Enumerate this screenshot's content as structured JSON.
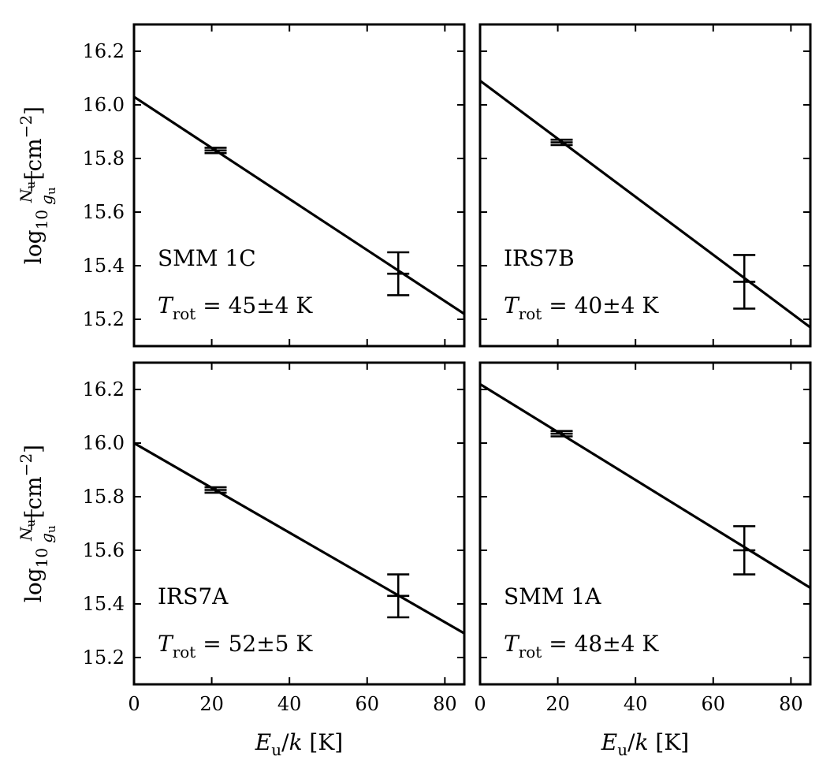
{
  "chart_data": {
    "type": "scatter",
    "layout": "2x2 grid, shared axes",
    "xlabel": {
      "symbol": "E",
      "sub": "u",
      "rest": "/k [K]"
    },
    "ylabel": {
      "prefix": "log",
      "prefix_sub": "10",
      "num": "N",
      "num_sub": "u",
      "den": "g",
      "den_sub": "u",
      "unit": "[cm",
      "unit_sup": "−2",
      "unit_close": "]"
    },
    "xlim": [
      0,
      85
    ],
    "ylim": [
      15.1,
      16.3
    ],
    "xticks": [
      0,
      20,
      40,
      60,
      80
    ],
    "xtick_labels": [
      "0",
      "20",
      "40",
      "60",
      "80"
    ],
    "yticks": [
      15.2,
      15.4,
      15.6,
      15.8,
      16.0,
      16.2
    ],
    "ytick_labels": [
      "15.2",
      "15.4",
      "15.6",
      "15.8",
      "16.0",
      "16.2"
    ],
    "grid": false,
    "panels": [
      {
        "name": "SMM 1C",
        "trot_symbol": "T",
        "trot_sub": "rot",
        "trot_text": " = 45±4 K",
        "fit": {
          "x": [
            0,
            85
          ],
          "y": [
            16.03,
            15.22
          ]
        },
        "points": [
          {
            "x": 21,
            "y": 15.83,
            "yerr": 0.01
          },
          {
            "x": 68,
            "y": 15.37,
            "yerr": 0.08
          }
        ]
      },
      {
        "name": "IRS7B",
        "trot_symbol": "T",
        "trot_sub": "rot",
        "trot_text": " = 40±4 K",
        "fit": {
          "x": [
            0,
            85
          ],
          "y": [
            16.09,
            15.17
          ]
        },
        "points": [
          {
            "x": 21,
            "y": 15.86,
            "yerr": 0.01
          },
          {
            "x": 68,
            "y": 15.34,
            "yerr": 0.1
          }
        ]
      },
      {
        "name": "IRS7A",
        "trot_symbol": "T",
        "trot_sub": "rot",
        "trot_text": " = 52±5 K",
        "fit": {
          "x": [
            0,
            85
          ],
          "y": [
            16.0,
            15.29
          ]
        },
        "points": [
          {
            "x": 21,
            "y": 15.825,
            "yerr": 0.01
          },
          {
            "x": 68,
            "y": 15.43,
            "yerr": 0.08
          }
        ]
      },
      {
        "name": "SMM 1A",
        "trot_symbol": "T",
        "trot_sub": "rot",
        "trot_text": " = 48±4 K",
        "fit": {
          "x": [
            0,
            85
          ],
          "y": [
            16.22,
            15.46
          ]
        },
        "points": [
          {
            "x": 21,
            "y": 16.035,
            "yerr": 0.01
          },
          {
            "x": 68,
            "y": 15.6,
            "yerr": 0.09
          }
        ]
      }
    ]
  }
}
